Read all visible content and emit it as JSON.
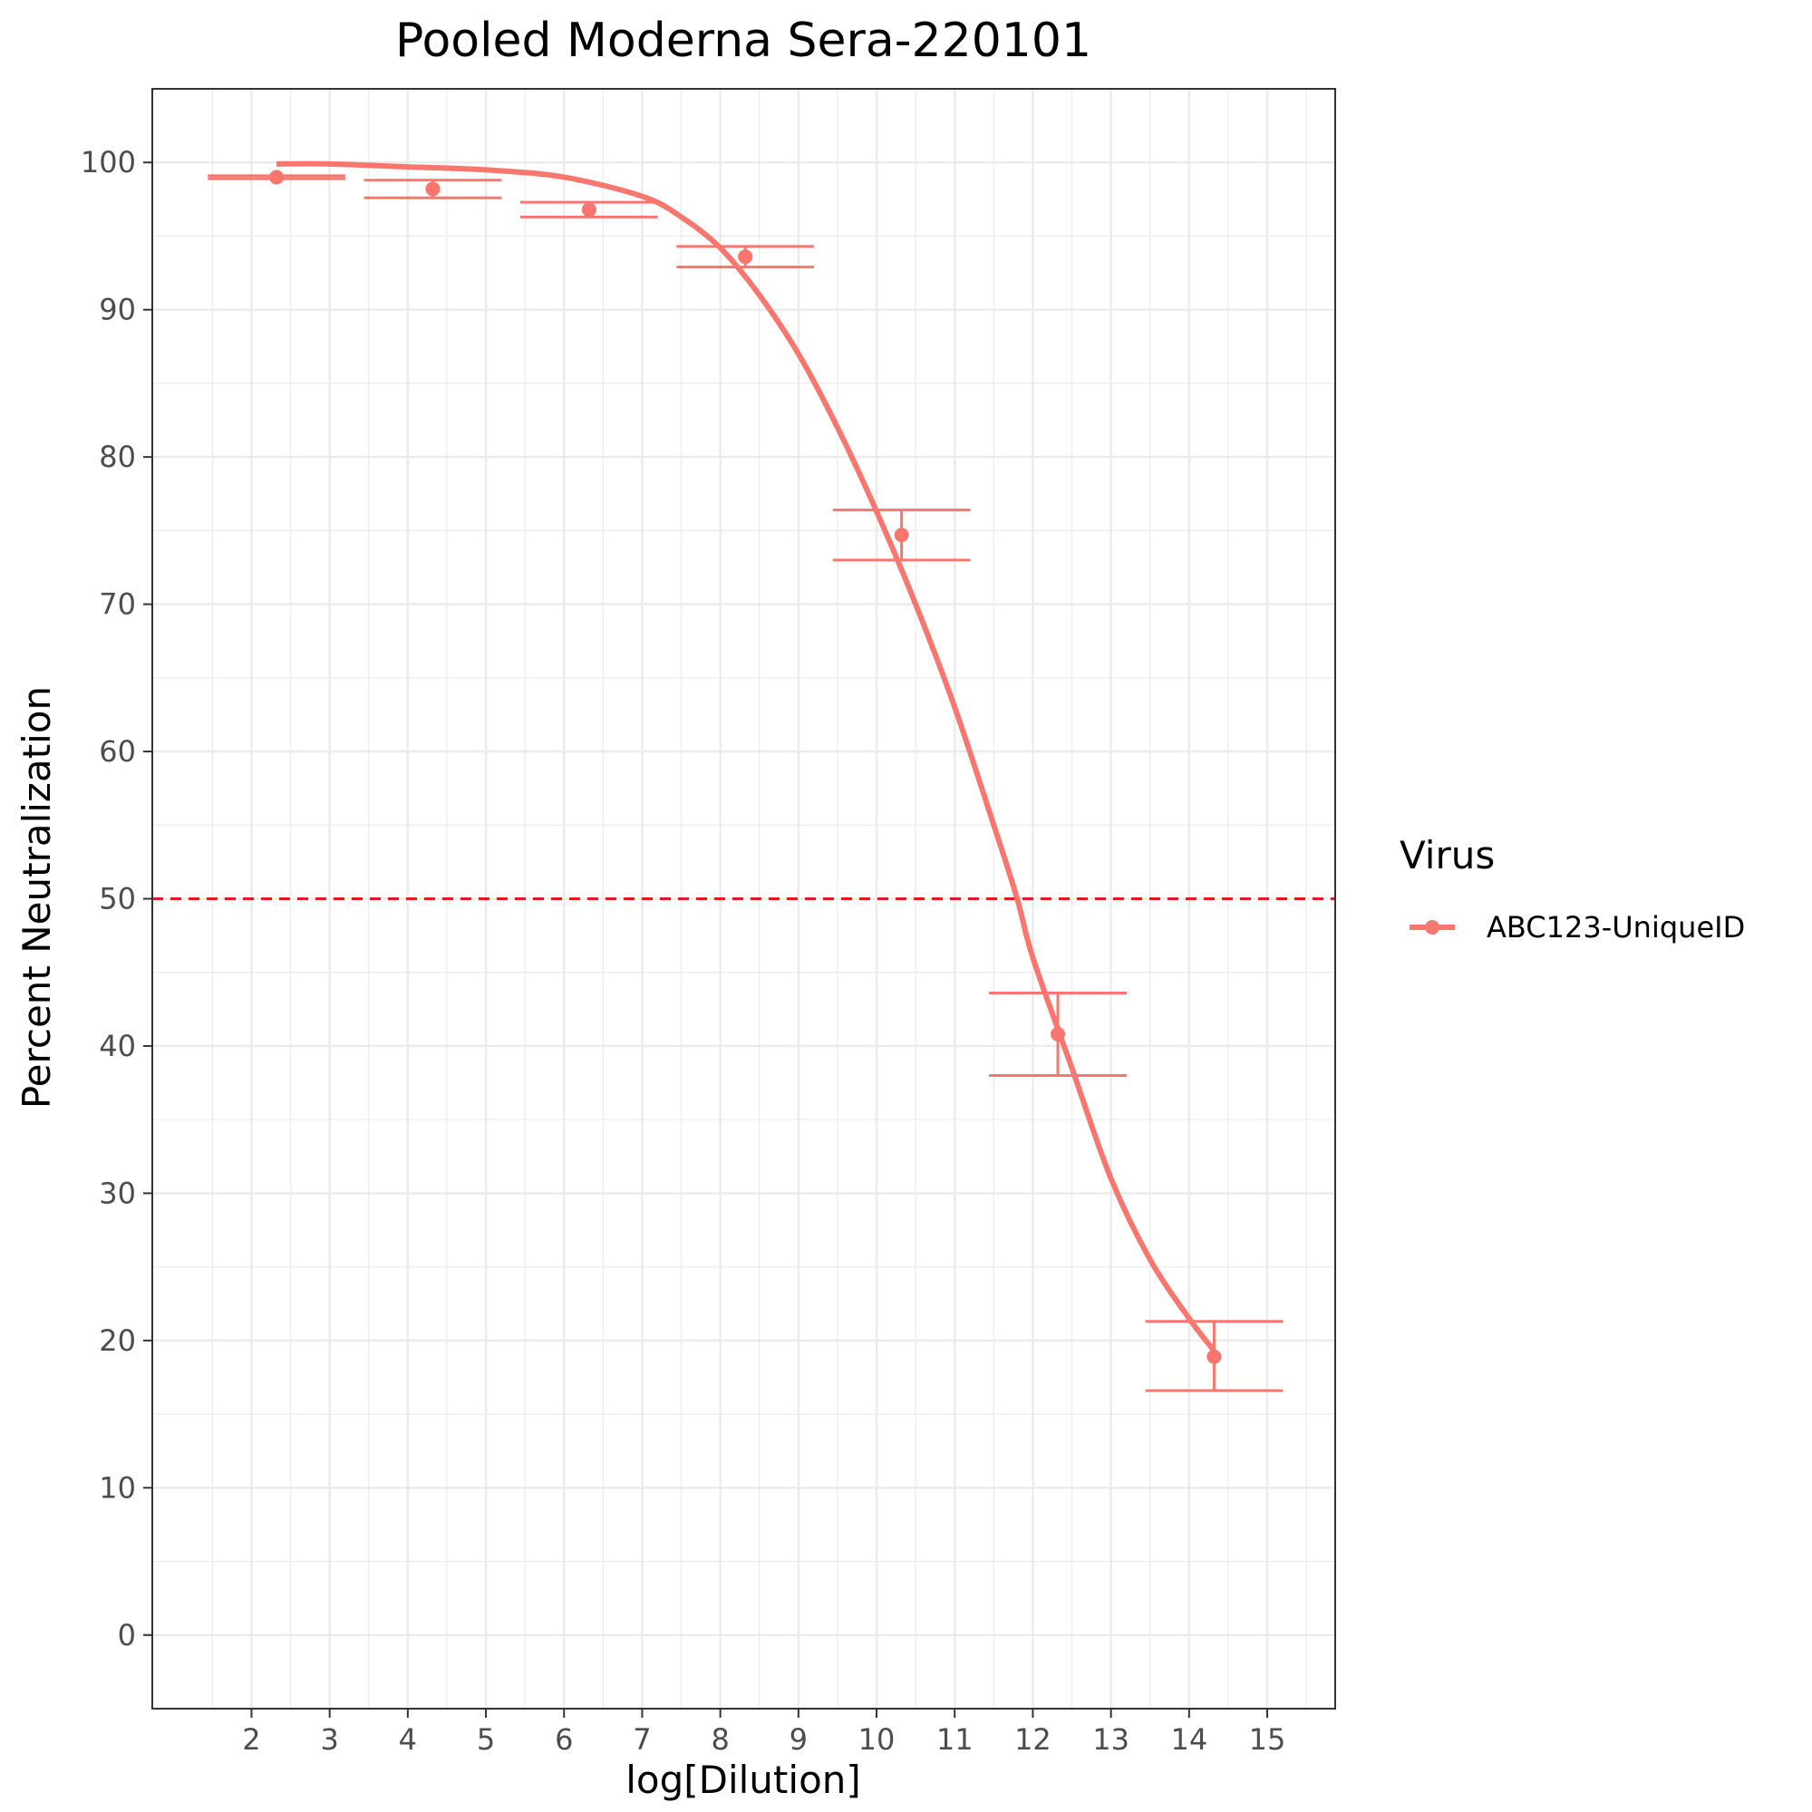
{
  "chart_data": {
    "type": "line",
    "title": "Pooled Moderna Sera-220101",
    "xlabel": "log[Dilution]",
    "ylabel": "Percent Neutralization",
    "xlim": [
      0.73,
      15.87
    ],
    "ylim": [
      -5,
      105
    ],
    "x_ticks": [
      2,
      3,
      4,
      5,
      6,
      7,
      8,
      9,
      10,
      11,
      12,
      13,
      14,
      15
    ],
    "y_ticks": [
      0,
      10,
      20,
      30,
      40,
      50,
      60,
      70,
      80,
      90,
      100
    ],
    "grid": true,
    "reference_line": {
      "y": 50,
      "color": "#e41a1c",
      "style": "dashed"
    },
    "legend": {
      "title": "Virus",
      "position": "right"
    },
    "series": [
      {
        "name": "ABC123-UniqueID",
        "color": "#f8766d",
        "points": [
          {
            "x": 2.32,
            "y": 99.0,
            "ymin": 98.9,
            "ymax": 99.1
          },
          {
            "x": 4.32,
            "y": 98.2,
            "ymin": 97.6,
            "ymax": 98.8
          },
          {
            "x": 6.32,
            "y": 96.8,
            "ymin": 96.3,
            "ymax": 97.3
          },
          {
            "x": 8.32,
            "y": 93.6,
            "ymin": 92.9,
            "ymax": 94.3
          },
          {
            "x": 10.32,
            "y": 74.7,
            "ymin": 73.0,
            "ymax": 76.4
          },
          {
            "x": 12.32,
            "y": 40.8,
            "ymin": 38.0,
            "ymax": 43.6
          },
          {
            "x": 14.32,
            "y": 18.9,
            "ymin": 16.6,
            "ymax": 21.3
          }
        ],
        "fit": [
          {
            "x": 2.32,
            "y": 99.9
          },
          {
            "x": 3,
            "y": 99.9
          },
          {
            "x": 4,
            "y": 99.7
          },
          {
            "x": 5,
            "y": 99.5
          },
          {
            "x": 6,
            "y": 99.0
          },
          {
            "x": 7,
            "y": 97.7
          },
          {
            "x": 7.5,
            "y": 96.3
          },
          {
            "x": 8,
            "y": 94.2
          },
          {
            "x": 8.5,
            "y": 91.0
          },
          {
            "x": 9,
            "y": 87.0
          },
          {
            "x": 9.5,
            "y": 82.0
          },
          {
            "x": 10,
            "y": 76.3
          },
          {
            "x": 10.5,
            "y": 70.0
          },
          {
            "x": 11,
            "y": 63.0
          },
          {
            "x": 11.5,
            "y": 55.0
          },
          {
            "x": 11.8,
            "y": 50.0
          },
          {
            "x": 12,
            "y": 46.0
          },
          {
            "x": 12.5,
            "y": 38.5
          },
          {
            "x": 13,
            "y": 31.0
          },
          {
            "x": 13.5,
            "y": 25.5
          },
          {
            "x": 14,
            "y": 21.5
          },
          {
            "x": 14.32,
            "y": 19.3
          }
        ]
      }
    ]
  }
}
